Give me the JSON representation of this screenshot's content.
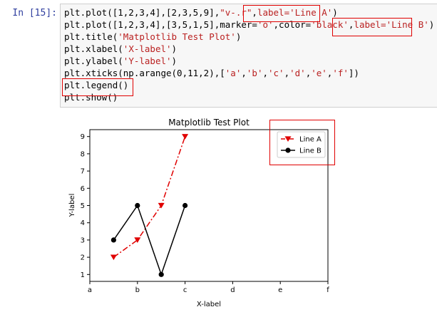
{
  "cell": {
    "prompt": "In [15]:",
    "code_lines": [
      [
        "plt.plot([1,2,3,4],[2,3,5,9],",
        "\"v-.r\"",
        ",",
        "label='Line A'",
        ")"
      ],
      [
        "plt.plot([1,2,3,4],[3,5,1,5],marker=",
        "'o'",
        ",color=",
        "'black'",
        ",",
        "label='Line B'",
        ")"
      ],
      [
        "plt.title(",
        "'Matplotlib Test Plot'",
        ")"
      ],
      [
        "plt.xlabel(",
        "'X-label'",
        ")"
      ],
      [
        "plt.ylabel(",
        "'Y-label'",
        ")"
      ],
      [
        "plt.xticks(np.arange(0,11,2),[",
        "'a'",
        ",",
        "'b'",
        ",",
        "'c'",
        ",",
        "'d'",
        ",",
        "'e'",
        ",",
        "'f'",
        "])"
      ],
      [
        "plt.legend()"
      ],
      [
        "plt.show()"
      ]
    ]
  },
  "colors": {
    "highlight_box": "#e00000",
    "prompt": "#303f9f",
    "string": "#ba2121"
  },
  "chart_data": {
    "type": "line",
    "title": "Matplotlib Test Plot",
    "xlabel": "X-label",
    "ylabel": "Y-label",
    "xlim": [
      0,
      10
    ],
    "ylim": [
      0.6,
      9.4
    ],
    "xticks": [
      0,
      2,
      4,
      6,
      8,
      10
    ],
    "xtick_labels": [
      "a",
      "b",
      "c",
      "d",
      "e",
      "f"
    ],
    "yticks": [
      1,
      2,
      3,
      4,
      5,
      6,
      7,
      8,
      9
    ],
    "legend_position": "top-right",
    "series": [
      {
        "name": "Line A",
        "x": [
          1,
          2,
          3,
          4
        ],
        "y": [
          2,
          3,
          5,
          9
        ],
        "color": "#e00000",
        "marker": "triangle-down",
        "linestyle": "dashdot"
      },
      {
        "name": "Line B",
        "x": [
          1,
          2,
          3,
          4
        ],
        "y": [
          3,
          5,
          1,
          5
        ],
        "color": "#000000",
        "marker": "circle",
        "linestyle": "solid"
      }
    ]
  }
}
